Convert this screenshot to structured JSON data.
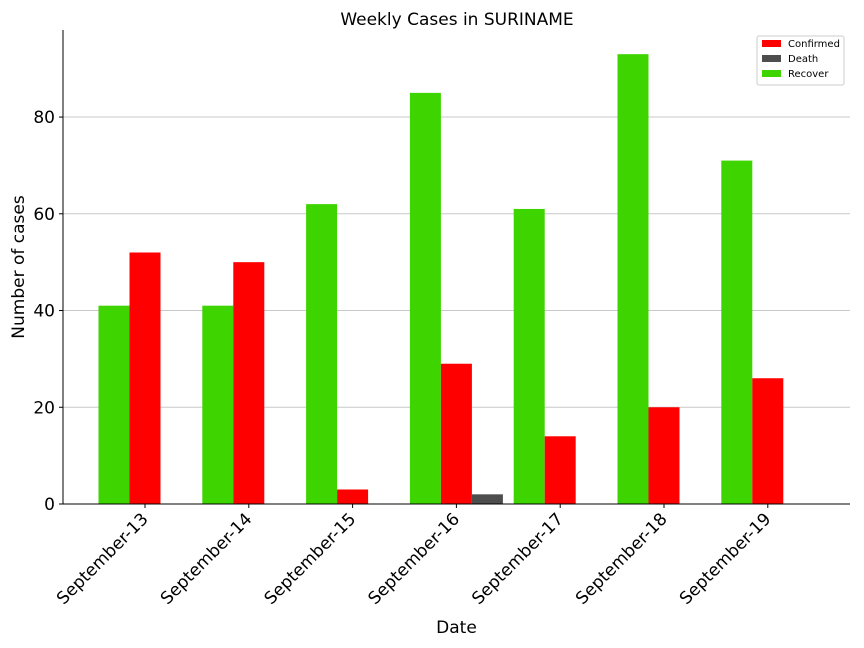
{
  "chart_data": {
    "type": "bar",
    "title": "Weekly Cases in SURINAME",
    "xlabel": "Date",
    "ylabel": "Number of cases",
    "categories": [
      "September-13",
      "September-14",
      "September-15",
      "September-16",
      "September-17",
      "September-18",
      "September-19"
    ],
    "series": [
      {
        "name": "Confirmed",
        "color": "#ff0000",
        "values": [
          52,
          50,
          3,
          29,
          14,
          20,
          26
        ]
      },
      {
        "name": "Death",
        "color": "#4d4d4d",
        "values": [
          0,
          0,
          0,
          2,
          0,
          0,
          0
        ]
      },
      {
        "name": "Recover",
        "color": "#3dd400",
        "values": [
          41,
          41,
          62,
          85,
          61,
          93,
          71
        ]
      }
    ],
    "ylim": [
      0,
      98
    ],
    "yticks": [
      0,
      20,
      40,
      60,
      80
    ],
    "grid": "horizontal",
    "legend_position": "top-right"
  }
}
